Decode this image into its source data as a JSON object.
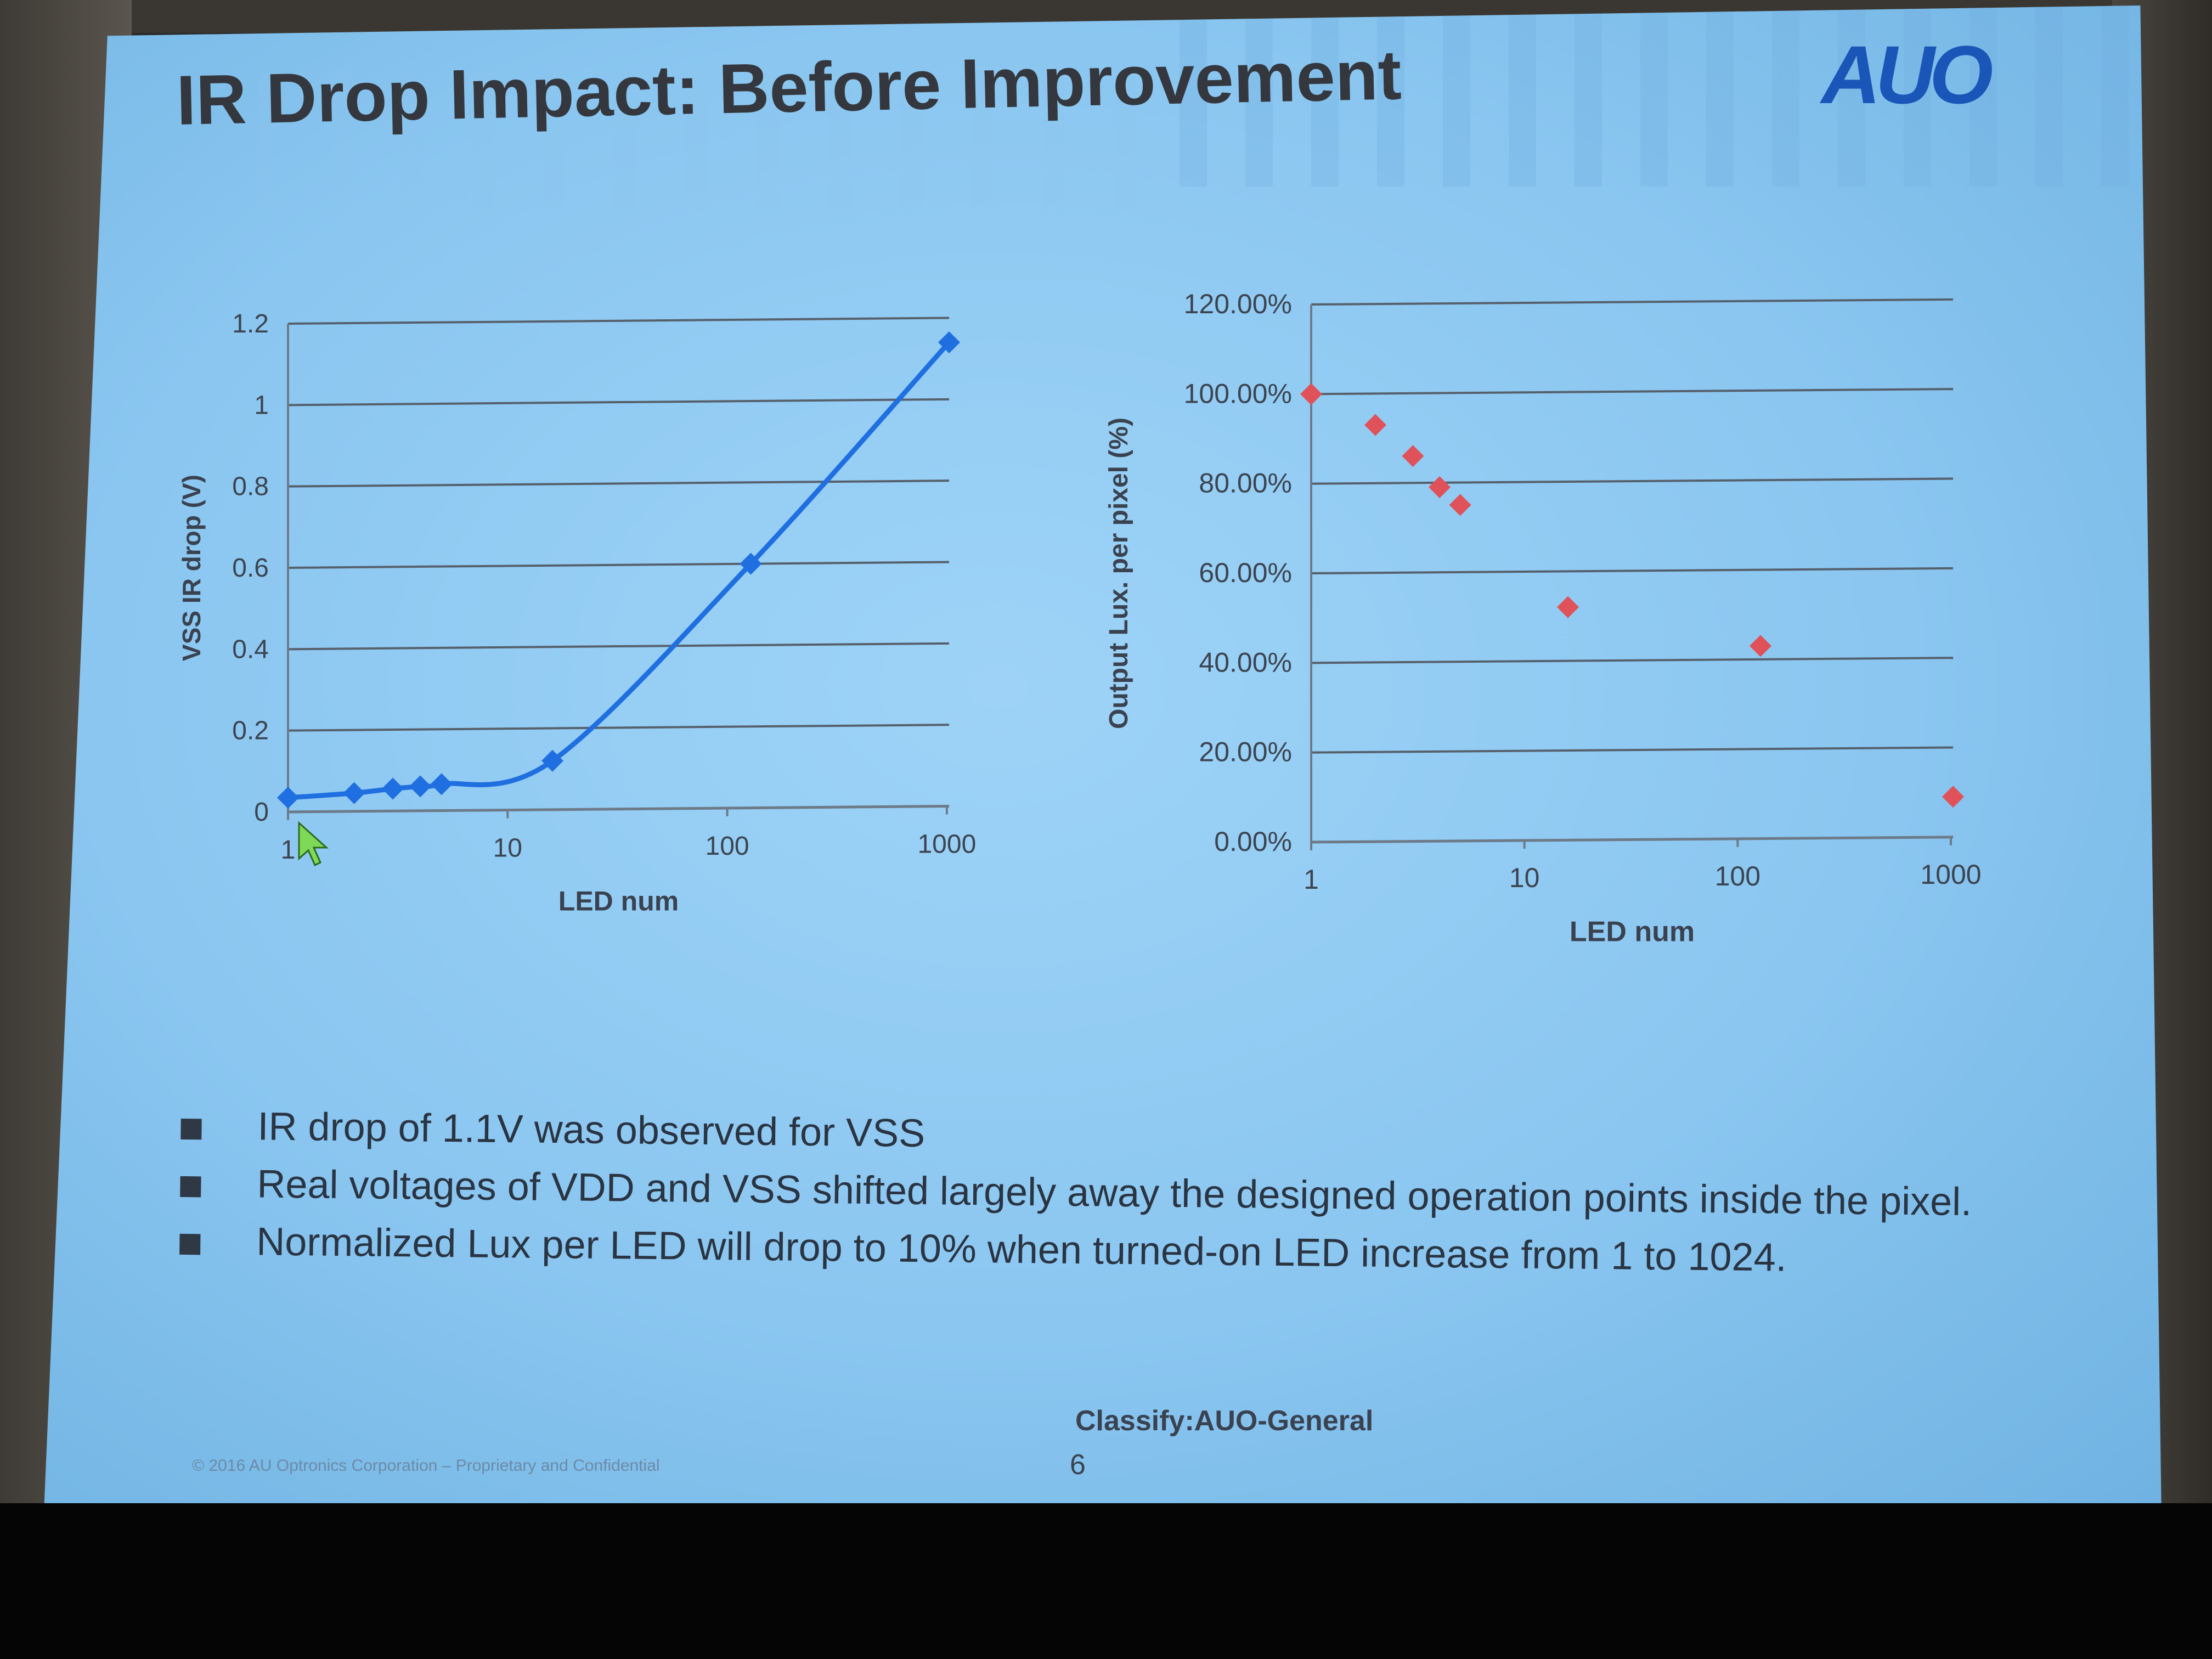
{
  "slide": {
    "title": "IR Drop Impact: Before Improvement",
    "logo": "AUO",
    "bullets": [
      "IR drop of 1.1V was observed for VSS",
      "Real voltages of VDD and VSS shifted largely away the designed operation points inside the pixel.",
      "Normalized Lux per LED will drop to 10% when turned-on LED increase from 1 to 1024."
    ],
    "classify": "Classify:AUO-General",
    "page_number": "6",
    "copyright": "© 2016 AU Optronics Corporation – Proprietary and Confidential"
  },
  "chart_data": [
    {
      "type": "line",
      "xlabel": "LED num",
      "ylabel": "VSS IR drop (V)",
      "x_scale": "log",
      "xlim": [
        1,
        1024
      ],
      "ylim": [
        0,
        1.2
      ],
      "x_ticks": [
        "1",
        "10",
        "100",
        "1000"
      ],
      "y_ticks": [
        "0",
        "0.2",
        "0.4",
        "0.6",
        "0.8",
        "1",
        "1.2"
      ],
      "grid": true,
      "marker": "diamond",
      "color": "#1f6fe0",
      "series": [
        {
          "x": [
            1,
            2,
            3,
            4,
            5,
            16,
            128,
            1024
          ],
          "y": [
            0.035,
            0.045,
            0.055,
            0.06,
            0.065,
            0.12,
            0.6,
            1.14
          ]
        }
      ]
    },
    {
      "type": "scatter",
      "xlabel": "LED num",
      "ylabel": "Output Lux. per pixel (%)",
      "x_scale": "log",
      "xlim": [
        1,
        1024
      ],
      "ylim": [
        0,
        1.2
      ],
      "x_ticks": [
        "1",
        "10",
        "100",
        "1000"
      ],
      "y_ticks": [
        "0.00%",
        "20.00%",
        "40.00%",
        "60.00%",
        "80.00%",
        "100.00%",
        "120.00%"
      ],
      "grid": true,
      "marker": "diamond",
      "color": "#e0525a",
      "series": [
        {
          "x": [
            1,
            2,
            3,
            4,
            5,
            16,
            128,
            1024
          ],
          "y": [
            1.0,
            0.93,
            0.86,
            0.79,
            0.75,
            0.52,
            0.43,
            0.09
          ]
        }
      ]
    }
  ]
}
